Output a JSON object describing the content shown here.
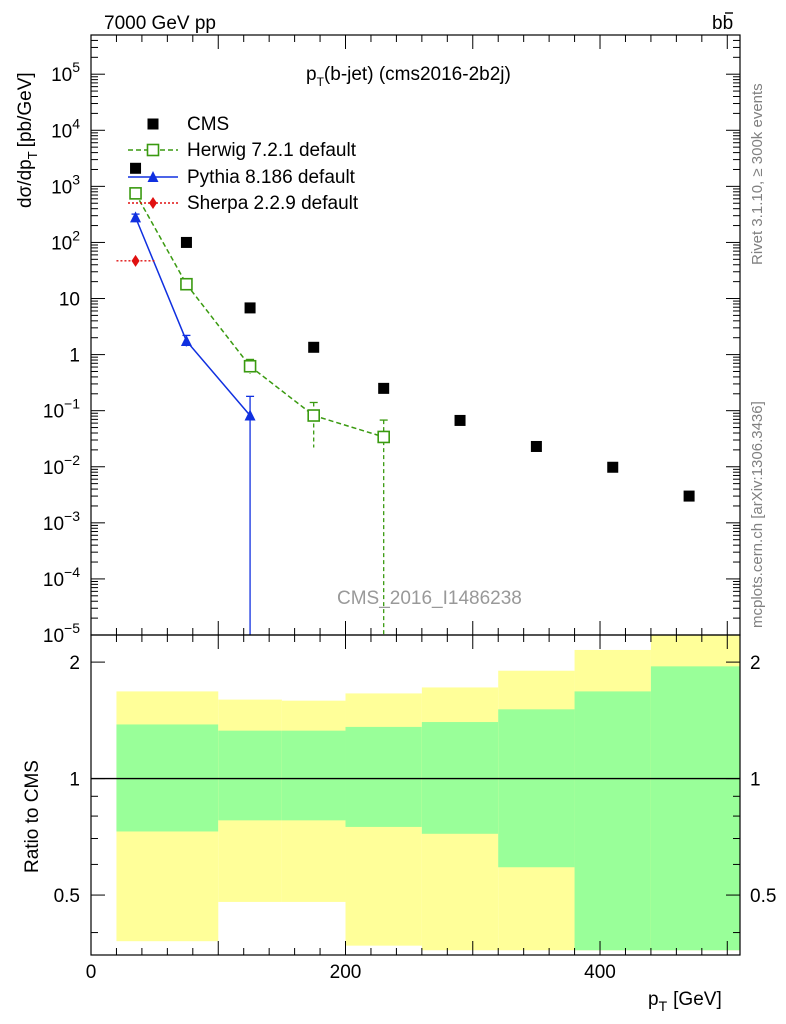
{
  "header": {
    "left": "7000 GeV pp",
    "right": "bb",
    "plot_title_main": "p",
    "plot_title_sub": "T",
    "plot_title_rest": "(b-jet) (cms2016-2b2j)",
    "watermark": "CMS_2016_I1486238",
    "side_rivet": "Rivet 3.1.10, ≥ 300k events",
    "side_mcplots": "mcplots.cern.ch [arXiv:1306.3436]"
  },
  "labels": {
    "ylabel_main": "dσ/dp",
    "ylabel_sub": "T",
    "ylabel_unit": "[pb/GeV]",
    "ratio_ylabel": "Ratio to CMS",
    "xlabel_main": "p",
    "xlabel_sub": "T",
    "xlabel_unit": "[GeV]"
  },
  "colors": {
    "data": "#000000",
    "herwig": "#3a9a10",
    "pythia": "#1030e0",
    "sherpa": "#e01010",
    "band_inner": "#99ff99",
    "band_outer": "#ffff99"
  },
  "chart_data": [
    {
      "type": "scatter",
      "panel": "main",
      "xlim": [
        0,
        510
      ],
      "ylim": [
        1e-05,
        500000
      ],
      "yscale": "log",
      "xticks": [
        0,
        200,
        400
      ],
      "yticks": [
        {
          "v": 100000.0,
          "base": "10",
          "exp": "5"
        },
        {
          "v": 10000.0,
          "base": "10",
          "exp": "4"
        },
        {
          "v": 1000.0,
          "base": "10",
          "exp": "3"
        },
        {
          "v": 100.0,
          "base": "10",
          "exp": "2"
        },
        {
          "v": 10,
          "base": "10",
          "exp": ""
        },
        {
          "v": 1,
          "base": "1",
          "exp": ""
        },
        {
          "v": 0.1,
          "base": "10",
          "exp": "−1"
        },
        {
          "v": 0.01,
          "base": "10",
          "exp": "−2"
        },
        {
          "v": 0.001,
          "base": "10",
          "exp": "−3"
        },
        {
          "v": 0.0001,
          "base": "10",
          "exp": "−4"
        },
        {
          "v": 1e-05,
          "base": "10",
          "exp": "−5"
        }
      ],
      "series": [
        {
          "name": "CMS",
          "marker": "square",
          "x": [
            35,
            75,
            125,
            175,
            230,
            290,
            350,
            410,
            470
          ],
          "y": [
            2100,
            100,
            6.8,
            1.35,
            0.25,
            0.067,
            0.023,
            0.0098,
            0.003
          ]
        },
        {
          "name": "Herwig 7.2.1 default",
          "marker": "open-square",
          "line": "dashed",
          "x": [
            35,
            75,
            125,
            175,
            230
          ],
          "y": [
            750,
            18,
            0.62,
            0.082,
            0.034
          ],
          "yerr_low": [
            650,
            15,
            0.45,
            0.022,
            1e-06
          ],
          "yerr_high": [
            880,
            21,
            0.82,
            0.14,
            0.068
          ]
        },
        {
          "name": "Pythia 8.186 default",
          "marker": "triangle",
          "line": "solid",
          "x": [
            35,
            75,
            125
          ],
          "y": [
            280,
            1.75,
            0.082
          ],
          "yerr_low": [
            240,
            1.4,
            1e-06
          ],
          "yerr_high": [
            320,
            2.2,
            0.18
          ]
        },
        {
          "name": "Sherpa 2.2.9 default",
          "marker": "diamond",
          "line": "dotted",
          "x": [
            35
          ],
          "y": [
            47
          ],
          "xerr_low": [
            20
          ],
          "xerr_high": [
            50
          ]
        }
      ]
    },
    {
      "type": "area",
      "panel": "ratio",
      "ylabel": "Ratio to CMS",
      "xlim": [
        0,
        510
      ],
      "ylim": [
        0.35,
        2.35
      ],
      "yscale": "log",
      "yticks": [
        0.5,
        1,
        2
      ],
      "reference_line": 1,
      "bins": [
        {
          "x_low": 20,
          "x_high": 100,
          "inner_low": 0.73,
          "inner_high": 1.38,
          "outer_low": 0.38,
          "outer_high": 1.68
        },
        {
          "x_low": 100,
          "x_high": 150,
          "inner_low": 0.78,
          "inner_high": 1.33,
          "outer_low": 0.48,
          "outer_high": 1.6
        },
        {
          "x_low": 150,
          "x_high": 200,
          "inner_low": 0.78,
          "inner_high": 1.33,
          "outer_low": 0.48,
          "outer_high": 1.59
        },
        {
          "x_low": 200,
          "x_high": 260,
          "inner_low": 0.75,
          "inner_high": 1.36,
          "outer_low": 0.37,
          "outer_high": 1.66
        },
        {
          "x_low": 260,
          "x_high": 320,
          "inner_low": 0.72,
          "inner_high": 1.4,
          "outer_low": 0.36,
          "outer_high": 1.72
        },
        {
          "x_low": 320,
          "x_high": 380,
          "inner_low": 0.59,
          "inner_high": 1.51,
          "outer_low": 0.36,
          "outer_high": 1.9
        },
        {
          "x_low": 380,
          "x_high": 440,
          "inner_low": 0.36,
          "inner_high": 1.68,
          "outer_low": 0.36,
          "outer_high": 2.15
        },
        {
          "x_low": 440,
          "x_high": 510,
          "inner_low": 0.36,
          "inner_high": 1.95,
          "outer_low": 0.36,
          "outer_high": 2.35
        }
      ]
    }
  ]
}
